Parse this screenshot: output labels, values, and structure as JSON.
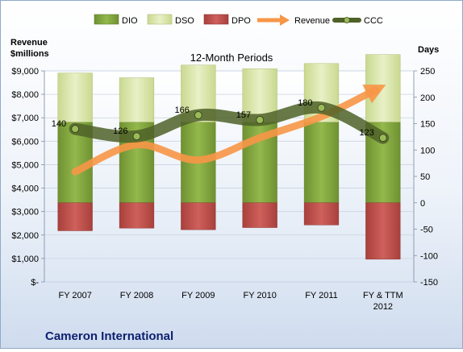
{
  "chart_data": {
    "type": "bar",
    "title": "12-Month Periods",
    "footer": "Cameron International",
    "left_axis_label": [
      "Revenue",
      "$millions"
    ],
    "right_axis_label": "Days",
    "categories": [
      "FY 2007",
      "FY 2008",
      "FY 2009",
      "FY 2010",
      "FY 2011",
      [
        "FY & TTM",
        "2012"
      ]
    ],
    "left_axis": {
      "range": [
        0,
        9000
      ],
      "ticks": [
        0,
        1000,
        2000,
        3000,
        4000,
        5000,
        6000,
        7000,
        8000,
        9000
      ],
      "tick_labels": [
        "$-",
        "$1,000",
        "$2,000",
        "$3,000",
        "$4,000",
        "$5,000",
        "$6,000",
        "$7,000",
        "$8,000",
        "$9,000"
      ]
    },
    "right_axis": {
      "range": [
        -150,
        250
      ],
      "ticks": [
        -150,
        -100,
        -50,
        0,
        50,
        100,
        150,
        200,
        250
      ]
    },
    "series": [
      {
        "name": "DIO",
        "kind": "bar",
        "color": "#7fa23c",
        "values": [
          153,
          153,
          153,
          153,
          153,
          153
        ]
      },
      {
        "name": "DSO",
        "kind": "bar",
        "color": "#d7e4a8",
        "values": [
          93,
          84,
          108,
          101,
          111,
          128
        ]
      },
      {
        "name": "DPO",
        "kind": "bar",
        "color": "#c0504d",
        "values": [
          -53,
          -48,
          -51,
          -47,
          -42,
          -107
        ]
      },
      {
        "name": "Revenue",
        "kind": "line",
        "axis": "left",
        "color": "#f79646",
        "values": [
          4700,
          5850,
          5200,
          6150,
          7050,
          8350
        ]
      },
      {
        "name": "CCC",
        "kind": "line",
        "axis": "right",
        "color": "#4f6228",
        "values": [
          140,
          126,
          166,
          157,
          180,
          123
        ],
        "labels": [
          "140",
          "126",
          "166",
          "157",
          "180",
          "123"
        ]
      }
    ],
    "legend_position": "top",
    "grid": true
  }
}
